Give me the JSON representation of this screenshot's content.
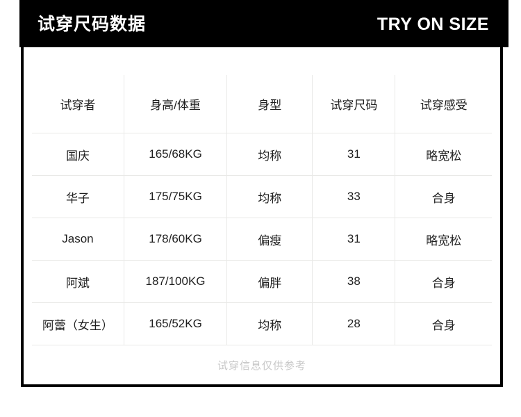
{
  "header": {
    "title": "试穿尺码数据",
    "subtitle_en": "TRY ON SIZE"
  },
  "table": {
    "columns": [
      "试穿者",
      "身高/体重",
      "身型",
      "试穿尺码",
      "试穿感受"
    ],
    "rows": [
      [
        "国庆",
        "165/68KG",
        "均称",
        "31",
        "略宽松"
      ],
      [
        "华子",
        "175/75KG",
        "均称",
        "33",
        "合身"
      ],
      [
        "Jason",
        "178/60KG",
        "偏瘦",
        "31",
        "略宽松"
      ],
      [
        "阿斌",
        "187/100KG",
        "偏胖",
        "38",
        "合身"
      ],
      [
        "阿蕾（女生）",
        "165/52KG",
        "均称",
        "28",
        "合身"
      ]
    ]
  },
  "footer": {
    "note": "试穿信息仅供参考"
  },
  "colors": {
    "header_bg": "#000000",
    "header_text": "#ffffff",
    "panel_border": "#000000",
    "grid_line": "#e9e9e7",
    "body_text": "#1f1f1f",
    "note_text": "#c8c8c8"
  }
}
